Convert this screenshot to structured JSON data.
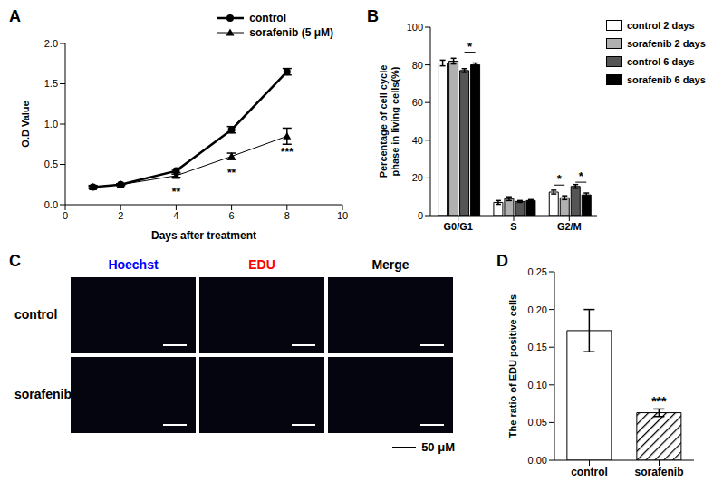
{
  "chart_data": [
    {
      "panel": "A",
      "type": "line",
      "x_label": "Days after treatment",
      "y_label": "O.D Value",
      "x": [
        1,
        2,
        4,
        6,
        8
      ],
      "xlim": [
        0,
        10
      ],
      "xticks": [
        0,
        2,
        4,
        6,
        8,
        10
      ],
      "ylim": [
        0,
        2
      ],
      "yticks": [
        {
          "value": 0,
          "label": "0.0"
        },
        {
          "value": 0.5,
          "label": "0.5"
        },
        {
          "value": 1,
          "label": "1.0"
        },
        {
          "value": 1.5,
          "label": "1.5"
        },
        {
          "value": 2,
          "label": "2.0"
        }
      ],
      "legend": "top-right",
      "series": [
        {
          "name": "control",
          "color": "#000000",
          "marker": "circle",
          "values": [
            0.22,
            0.25,
            0.42,
            0.93,
            1.65
          ],
          "errors": [
            0.02,
            0.01,
            0.02,
            0.04,
            0.04
          ]
        },
        {
          "name": "sorafenib (5 μM)",
          "color": "#000000",
          "marker": "triangle",
          "values": [
            0.22,
            0.25,
            0.36,
            0.6,
            0.85
          ],
          "errors": [
            0.01,
            0.01,
            0.02,
            0.04,
            0.1
          ]
        }
      ],
      "annotations": [
        {
          "x": 4,
          "text": "**"
        },
        {
          "x": 6,
          "text": "**"
        },
        {
          "x": 8,
          "text": "***"
        }
      ]
    },
    {
      "panel": "B",
      "type": "bar",
      "y_label": "Percentage of cell cycle phase in living cells(%)",
      "categories": [
        "G0/G1",
        "S",
        "G2/M"
      ],
      "ylim": [
        0,
        100
      ],
      "yticks": [
        0,
        20,
        40,
        60,
        80,
        100
      ],
      "legend": "right",
      "series": [
        {
          "name": "control 2 days",
          "color": "#ffffff",
          "values": [
            81,
            7,
            12.5
          ],
          "errors": [
            1.5,
            1,
            1
          ]
        },
        {
          "name": "sorafenib 2 days",
          "color": "#b0b0b0",
          "values": [
            82,
            9,
            9.5
          ],
          "errors": [
            1.5,
            1,
            1
          ]
        },
        {
          "name": "control 6 days",
          "color": "#555555",
          "values": [
            77,
            7.5,
            15.5
          ],
          "errors": [
            1,
            0.5,
            1
          ]
        },
        {
          "name": "sorafenib 6 days",
          "color": "#000000",
          "values": [
            80,
            8,
            11
          ],
          "errors": [
            1,
            0.5,
            1
          ]
        }
      ],
      "annotations": [
        {
          "category": "G0/G1",
          "series": "sorafenib 6 days",
          "text": "*"
        },
        {
          "category": "G2/M",
          "series": "sorafenib 2 days",
          "text": "*"
        },
        {
          "category": "G2/M",
          "series": "sorafenib 6 days",
          "text": "*"
        }
      ]
    },
    {
      "panel": "D",
      "type": "bar",
      "y_label": "The ratio of EDU positive cells",
      "categories": [
        "control",
        "sorafenib"
      ],
      "values": [
        0.172,
        0.063
      ],
      "errors": [
        0.028,
        0.005
      ],
      "colors": [
        "#ffffff",
        "#000000"
      ],
      "ylim": [
        0,
        0.25
      ],
      "yticks": [
        {
          "value": 0,
          "label": "0.00"
        },
        {
          "value": 0.05,
          "label": "0.05"
        },
        {
          "value": 0.1,
          "label": "0.10"
        },
        {
          "value": 0.15,
          "label": "0.15"
        },
        {
          "value": 0.2,
          "label": "0.20"
        },
        {
          "value": 0.25,
          "label": "0.25"
        }
      ],
      "annotations": [
        {
          "category": "sorafenib",
          "text": "***"
        }
      ]
    }
  ],
  "panel_c": {
    "panel": "C",
    "columns": [
      {
        "label": "Hoechst",
        "color": "#0000ff"
      },
      {
        "label": "EDU",
        "color": "#ff0000"
      },
      {
        "label": "Merge",
        "color": "#000000"
      }
    ],
    "rows": [
      "control",
      "sorafenib"
    ],
    "scale_bar": "50 μM"
  }
}
